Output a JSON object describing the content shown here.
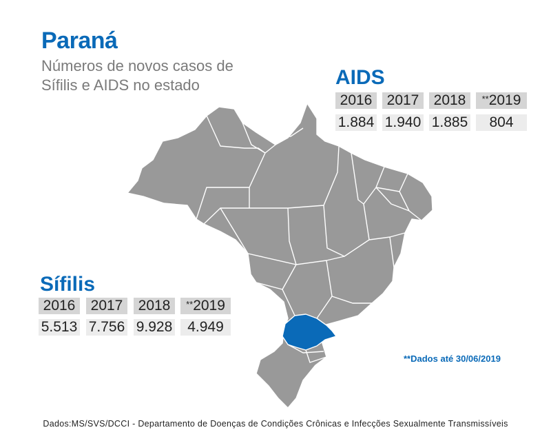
{
  "title": "Paraná",
  "subtitle": "Números de novos casos de Sífilis e AIDS no estado",
  "colors": {
    "accent": "#0a6ab8",
    "map_fill": "#999999",
    "highlight": "#0a6ab8"
  },
  "map": {
    "highlighted_state": "Paraná"
  },
  "aids": {
    "title": "AIDS",
    "years": [
      "2016",
      "2017",
      "2018",
      "2019"
    ],
    "year_marks": [
      "",
      "",
      "",
      "**"
    ],
    "values": [
      "1.884",
      "1.940",
      "1.885",
      "804"
    ]
  },
  "sifilis": {
    "title": "Sífilis",
    "years": [
      "2016",
      "2017",
      "2018",
      "2019"
    ],
    "year_marks": [
      "",
      "",
      "",
      "**"
    ],
    "values": [
      "5.513",
      "7.756",
      "9.928",
      "4.949"
    ]
  },
  "note": "**Dados até 30/06/2019",
  "footer": "Dados:MS/SVS/DCCI - Departamento de Doenças de Condições Crônicas e Infecções Sexualmente Transmissíveis"
}
